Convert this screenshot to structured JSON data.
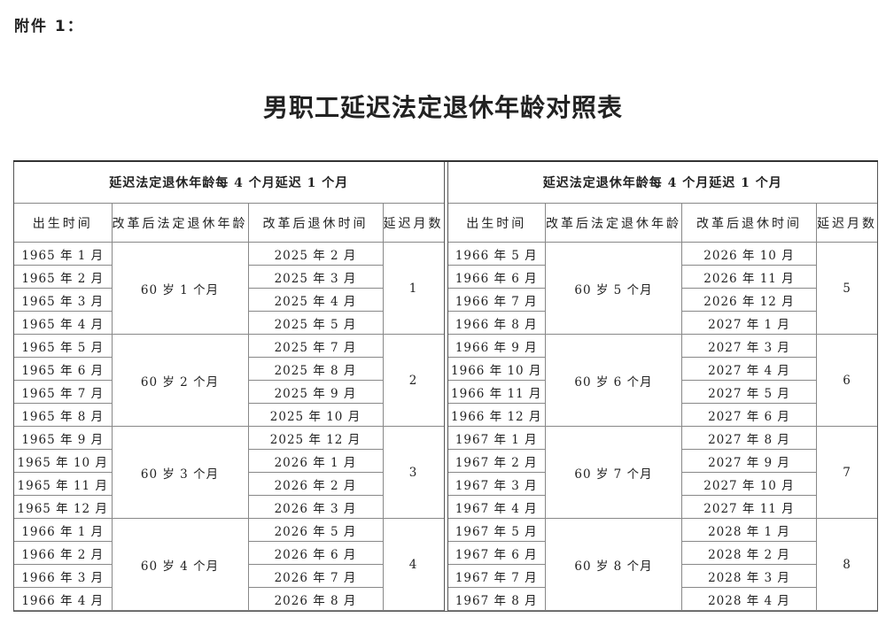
{
  "attachment_label": "附件 1：",
  "title": "男职工延迟法定退休年龄对照表",
  "tables": [
    {
      "header": "延迟法定退休年龄每 4 个月延迟 1 个月",
      "columns": [
        "出生时间",
        "改革后法定退休年龄",
        "改革后退休时间",
        "延迟月数"
      ],
      "groups": [
        {
          "age": "60 岁 1 个月",
          "delay": "1",
          "rows": [
            {
              "birth": "1965 年 1 月",
              "retire": "2025 年 2 月"
            },
            {
              "birth": "1965 年 2 月",
              "retire": "2025 年 3 月"
            },
            {
              "birth": "1965 年 3 月",
              "retire": "2025 年 4 月"
            },
            {
              "birth": "1965 年 4 月",
              "retire": "2025 年 5 月"
            }
          ]
        },
        {
          "age": "60 岁 2 个月",
          "delay": "2",
          "rows": [
            {
              "birth": "1965 年 5 月",
              "retire": "2025 年 7 月"
            },
            {
              "birth": "1965 年 6 月",
              "retire": "2025 年 8 月"
            },
            {
              "birth": "1965 年 7 月",
              "retire": "2025 年 9 月"
            },
            {
              "birth": "1965 年 8 月",
              "retire": "2025 年 10 月"
            }
          ]
        },
        {
          "age": "60 岁 3 个月",
          "delay": "3",
          "rows": [
            {
              "birth": "1965 年 9 月",
              "retire": "2025 年 12 月"
            },
            {
              "birth": "1965 年 10 月",
              "retire": "2026 年 1 月"
            },
            {
              "birth": "1965 年 11 月",
              "retire": "2026 年 2 月"
            },
            {
              "birth": "1965 年 12 月",
              "retire": "2026 年 3 月"
            }
          ]
        },
        {
          "age": "60 岁 4 个月",
          "delay": "4",
          "rows": [
            {
              "birth": "1966 年 1 月",
              "retire": "2026 年 5 月"
            },
            {
              "birth": "1966 年 2 月",
              "retire": "2026 年 6 月"
            },
            {
              "birth": "1966 年 3 月",
              "retire": "2026 年 7 月"
            },
            {
              "birth": "1966 年 4 月",
              "retire": "2026 年 8 月"
            }
          ]
        }
      ]
    },
    {
      "header": "延迟法定退休年龄每 4 个月延迟 1 个月",
      "columns": [
        "出生时间",
        "改革后法定退休年龄",
        "改革后退休时间",
        "延迟月数"
      ],
      "groups": [
        {
          "age": "60 岁 5 个月",
          "delay": "5",
          "rows": [
            {
              "birth": "1966 年 5 月",
              "retire": "2026 年 10 月"
            },
            {
              "birth": "1966 年 6 月",
              "retire": "2026 年 11 月"
            },
            {
              "birth": "1966 年 7 月",
              "retire": "2026 年 12 月"
            },
            {
              "birth": "1966 年 8 月",
              "retire": "2027 年 1 月"
            }
          ]
        },
        {
          "age": "60 岁 6 个月",
          "delay": "6",
          "rows": [
            {
              "birth": "1966 年 9 月",
              "retire": "2027 年 3 月"
            },
            {
              "birth": "1966 年 10 月",
              "retire": "2027 年 4 月"
            },
            {
              "birth": "1966 年 11 月",
              "retire": "2027 年 5 月"
            },
            {
              "birth": "1966 年 12 月",
              "retire": "2027 年 6 月"
            }
          ]
        },
        {
          "age": "60 岁 7 个月",
          "delay": "7",
          "rows": [
            {
              "birth": "1967 年 1 月",
              "retire": "2027 年 8 月"
            },
            {
              "birth": "1967 年 2 月",
              "retire": "2027 年 9 月"
            },
            {
              "birth": "1967 年 3 月",
              "retire": "2027 年 10 月"
            },
            {
              "birth": "1967 年 4 月",
              "retire": "2027 年 11 月"
            }
          ]
        },
        {
          "age": "60 岁 8 个月",
          "delay": "8",
          "rows": [
            {
              "birth": "1967 年 5 月",
              "retire": "2028 年 1 月"
            },
            {
              "birth": "1967 年 6 月",
              "retire": "2028 年 2 月"
            },
            {
              "birth": "1967 年 7 月",
              "retire": "2028 年 3 月"
            },
            {
              "birth": "1967 年 8 月",
              "retire": "2028 年 4 月"
            }
          ]
        }
      ]
    }
  ]
}
